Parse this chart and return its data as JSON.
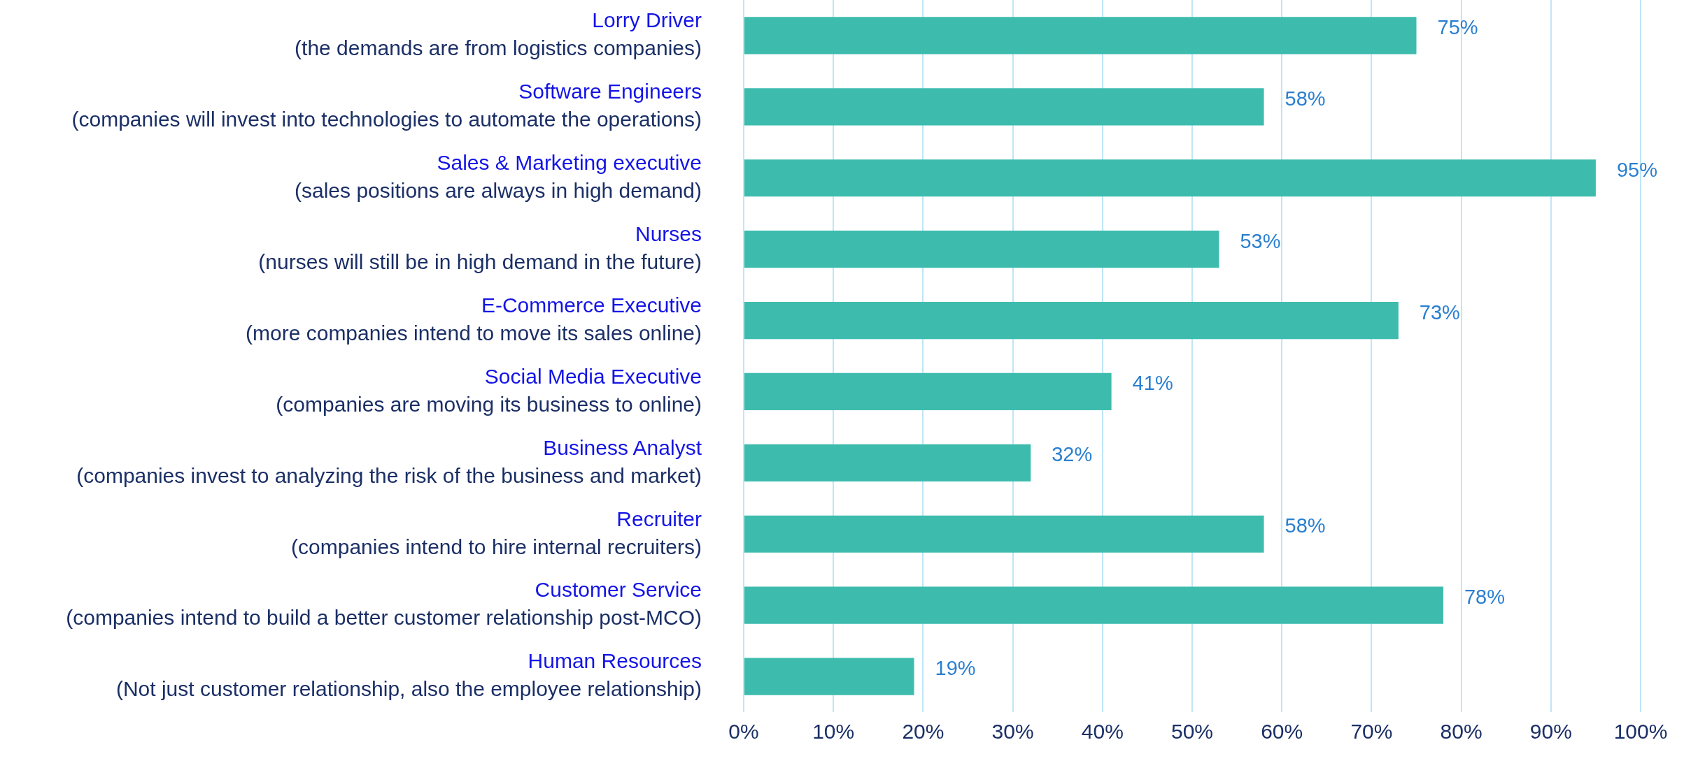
{
  "chart_data": {
    "type": "bar",
    "orientation": "horizontal",
    "categories": [
      "Lorry Driver\n(the demands are from logistics companies)",
      "Software Engineers\n(companies will invest into technologies to automate the operations)",
      "Sales & Marketing executive\n(sales positions are always in high demand)",
      "Nurses\n(nurses will still be in high demand in the future)",
      "E-Commerce Executive\n(more companies intend to move its sales online)",
      "Social Media Executive\n(companies are moving its business to online)",
      "Business Analyst\n(companies invest to analyzing the risk of the business and market)",
      "Recruiter\n(companies intend to hire internal recruiters)",
      "Customer Service\n(companies intend to build a better customer relationship post-MCO)",
      "Human Resources\n(Not just customer relationship, also the employee relationship)"
    ],
    "values": [
      75,
      58,
      95,
      53,
      73,
      41,
      32,
      58,
      78,
      19
    ],
    "color": "#3dbcae",
    "value_labels": [
      "75%",
      "58%",
      "95%",
      "53%",
      "73%",
      "41%",
      "32%",
      "58%",
      "78%",
      "19%"
    ],
    "xlim": [
      0,
      100
    ],
    "xticks": [
      {
        "value": 0,
        "label": "0%"
      },
      {
        "value": 10,
        "label": "10%"
      },
      {
        "value": 20,
        "label": "20%"
      },
      {
        "value": 30,
        "label": "30%"
      },
      {
        "value": 40,
        "label": "40%"
      },
      {
        "value": 50,
        "label": "50%"
      },
      {
        "value": 60,
        "label": "60%"
      },
      {
        "value": 70,
        "label": "70%"
      },
      {
        "value": 80,
        "label": "80%"
      },
      {
        "value": 90,
        "label": "90%"
      },
      {
        "value": 100,
        "label": "100%"
      }
    ],
    "grid": "x"
  }
}
